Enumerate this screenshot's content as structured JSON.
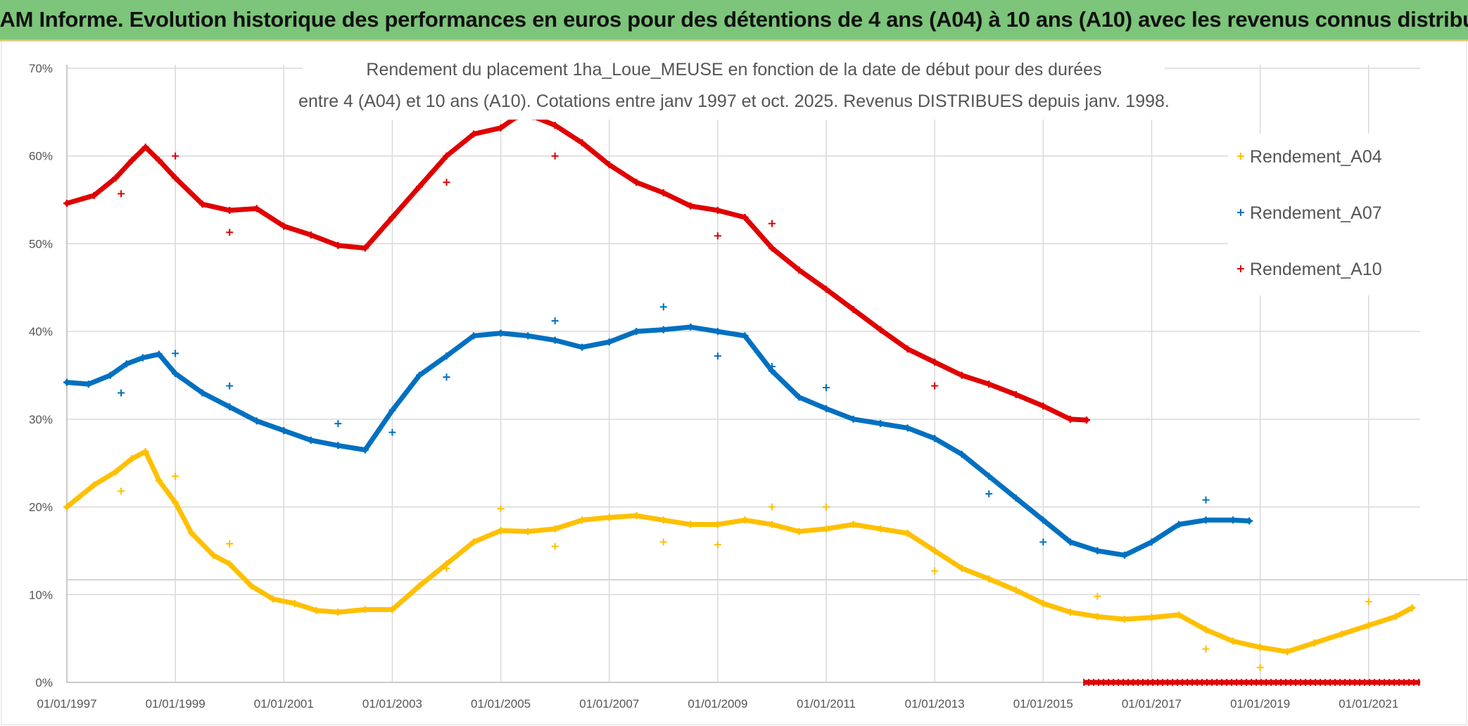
{
  "header": {
    "title": "ADAM Informe. Evolution historique des performances en euros pour des détentions de 4 ans (A04) à 10 ans (A10) avec les revenus connus distribués"
  },
  "colors": {
    "A04": "#ffc000",
    "A07": "#0070c0",
    "A10": "#e00000",
    "banner": "#7cc57a",
    "grid": "#d9d9d9"
  },
  "chart_data": {
    "type": "scatter",
    "title_lines": [
      "Rendement du placement 1ha_Loue_MEUSE en fonction de la date de début pour des durées",
      "entre 4 (A04) et 10 ans (A10). Cotations entre janv 1997 et oct. 2025. Revenus DISTRIBUES depuis janv. 1998."
    ],
    "xlabel": "",
    "ylabel": "",
    "xlim": [
      1997.0,
      2021.95
    ],
    "ylim": [
      0,
      70
    ],
    "x_tick_values": [
      1997,
      1999,
      2001,
      2003,
      2005,
      2007,
      2009,
      2011,
      2013,
      2015,
      2017,
      2019,
      2021
    ],
    "x_tick_labels": [
      "01/01/1997",
      "01/01/1999",
      "01/01/2001",
      "01/01/2003",
      "01/01/2005",
      "01/01/2007",
      "01/01/2009",
      "01/01/2011",
      "01/01/2013",
      "01/01/2015",
      "01/01/2017",
      "01/01/2019",
      "01/01/2021"
    ],
    "y_tick_values": [
      0,
      10,
      20,
      30,
      40,
      50,
      60,
      70
    ],
    "y_tick_labels": [
      "0%",
      "10%",
      "20%",
      "30%",
      "40%",
      "50%",
      "60%",
      "70%"
    ],
    "legend_position": "right",
    "series": [
      {
        "name": "Rendement_A04",
        "color": "#ffc000",
        "x": [
          1997.0,
          1997.5,
          1997.9,
          1998.2,
          1998.45,
          1998.7,
          1999.0,
          1999.3,
          1999.7,
          2000.0,
          2000.4,
          2000.8,
          2001.2,
          2001.6,
          2002.0,
          2002.5,
          2003.0,
          2003.5,
          2004.0,
          2004.5,
          2005.0,
          2005.5,
          2006.0,
          2006.5,
          2007.0,
          2007.5,
          2008.0,
          2008.5,
          2009.0,
          2009.5,
          2010.0,
          2010.5,
          2011.0,
          2011.5,
          2012.0,
          2012.5,
          2013.0,
          2013.5,
          2014.0,
          2014.5,
          2015.0,
          2015.5,
          2016.0,
          2016.5,
          2017.0,
          2017.5,
          2018.0,
          2018.5,
          2019.0,
          2019.5,
          2020.0,
          2020.5,
          2021.0,
          2021.5,
          2021.8
        ],
        "y": [
          20,
          22.5,
          24,
          25.5,
          26.3,
          23,
          20.5,
          17,
          14.5,
          13.5,
          11,
          9.5,
          9,
          8.2,
          8,
          8.3,
          8.3,
          11,
          13.5,
          16,
          17.3,
          17.2,
          17.5,
          18.5,
          18.8,
          19,
          18.5,
          18,
          18,
          18.5,
          18,
          17.2,
          17.5,
          18,
          17.5,
          17,
          15,
          13,
          11.8,
          10.5,
          9,
          8,
          7.5,
          7.2,
          7.4,
          7.7,
          6,
          4.7,
          4,
          3.5,
          4.5,
          5.5,
          6.5,
          7.5,
          8.5
        ]
      },
      {
        "name": "Rendement_A07",
        "color": "#0070c0",
        "x": [
          1997.0,
          1997.4,
          1997.8,
          1998.1,
          1998.4,
          1998.7,
          1999.0,
          1999.5,
          2000.0,
          2000.5,
          2001.0,
          2001.5,
          2002.0,
          2002.5,
          2003.0,
          2003.5,
          2004.0,
          2004.5,
          2005.0,
          2005.5,
          2006.0,
          2006.5,
          2007.0,
          2007.5,
          2008.0,
          2008.5,
          2009.0,
          2009.5,
          2010.0,
          2010.5,
          2011.0,
          2011.5,
          2012.0,
          2012.5,
          2013.0,
          2013.5,
          2014.0,
          2014.5,
          2015.0,
          2015.5,
          2016.0,
          2016.5,
          2017.0,
          2017.5,
          2018.0,
          2018.5,
          2018.8
        ],
        "y": [
          34.2,
          34,
          35,
          36.3,
          37,
          37.4,
          35.2,
          33,
          31.4,
          29.8,
          28.7,
          27.6,
          27,
          26.5,
          31,
          35,
          37.2,
          39.5,
          39.8,
          39.5,
          39,
          38.2,
          38.8,
          40,
          40.2,
          40.5,
          40,
          39.5,
          35.5,
          32.5,
          31.2,
          30,
          29.5,
          29,
          27.8,
          26,
          23.5,
          21,
          18.5,
          16,
          15,
          14.5,
          16,
          18,
          18.5,
          18.5,
          18.4
        ]
      },
      {
        "name": "Rendement_A10",
        "color": "#e00000",
        "x": [
          1997.0,
          1997.5,
          1997.9,
          1998.2,
          1998.45,
          1998.7,
          1999.0,
          1999.5,
          2000.0,
          2000.5,
          2001.0,
          2001.5,
          2002.0,
          2002.5,
          2003.0,
          2003.5,
          2004.0,
          2004.5,
          2005.0,
          2005.3,
          2005.6,
          2006.0,
          2006.5,
          2007.0,
          2007.5,
          2008.0,
          2008.5,
          2009.0,
          2009.5,
          2010.0,
          2010.5,
          2011.0,
          2011.5,
          2012.0,
          2012.5,
          2013.0,
          2013.5,
          2014.0,
          2014.5,
          2015.0,
          2015.5,
          2015.8
        ],
        "y": [
          54.6,
          55.5,
          57.5,
          59.5,
          61,
          59.5,
          57.5,
          54.5,
          53.8,
          54,
          52,
          51,
          49.8,
          49.5,
          53,
          56.5,
          60,
          62.5,
          63.2,
          64.5,
          64.5,
          63.5,
          61.5,
          59,
          57,
          55.8,
          54.3,
          53.8,
          53,
          49.5,
          47,
          44.8,
          42.5,
          40.2,
          38,
          36.5,
          35,
          34,
          32.8,
          31.5,
          30,
          29.9
        ]
      }
    ],
    "outliers": [
      {
        "name": "Rendement_A04",
        "x": [
          1998.0,
          1999.0,
          2000.0,
          2004.0,
          2005.0,
          2006.0,
          2008.0,
          2009.0,
          2010.0,
          2011.0,
          2013.0,
          2016.0,
          2018.0,
          2019.0,
          2021.0
        ],
        "y": [
          21.8,
          23.5,
          15.8,
          13,
          19.8,
          15.5,
          16,
          15.7,
          20,
          20,
          12.7,
          9.8,
          3.8,
          1.7,
          9.2
        ]
      },
      {
        "name": "Rendement_A07",
        "x": [
          1998.0,
          1999.0,
          2000.0,
          2002.0,
          2003.0,
          2004.0,
          2006.0,
          2008.0,
          2009.0,
          2010.0,
          2011.0,
          2014.0,
          2015.0,
          2018.0
        ],
        "y": [
          33,
          37.5,
          33.8,
          29.5,
          28.5,
          34.8,
          41.2,
          42.8,
          37.2,
          36,
          33.6,
          21.5,
          16,
          20.8
        ]
      },
      {
        "name": "Rendement_A10",
        "x": [
          1998.0,
          1999.0,
          2000.0,
          2004.0,
          2006.0,
          2009.0,
          2010.0,
          2013.0
        ],
        "y": [
          55.7,
          60,
          51.3,
          57,
          60,
          50.9,
          52.3,
          33.8
        ]
      },
      {
        "name": "Rendement_A10",
        "x_range": [
          2015.75,
          2021.95
        ],
        "y": 0
      }
    ]
  }
}
